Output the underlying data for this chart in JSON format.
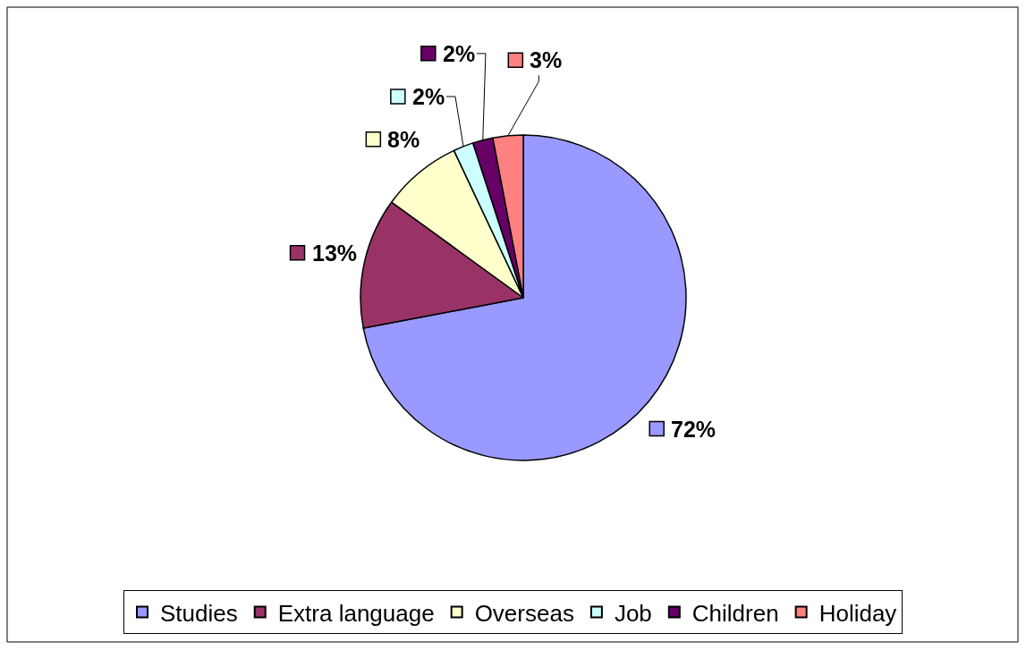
{
  "chart_data": {
    "type": "pie",
    "categories": [
      "Studies",
      "Extra language",
      "Overseas",
      "Job",
      "Children",
      "Holiday"
    ],
    "values": [
      72,
      13,
      8,
      2,
      2,
      3
    ],
    "colors": [
      "#9999ff",
      "#993366",
      "#ffffcc",
      "#ccffff",
      "#660066",
      "#ff8080"
    ],
    "value_labels": [
      "72%",
      "13%",
      "8%",
      "2%",
      "2%",
      "3%"
    ],
    "legend": "bottom"
  }
}
